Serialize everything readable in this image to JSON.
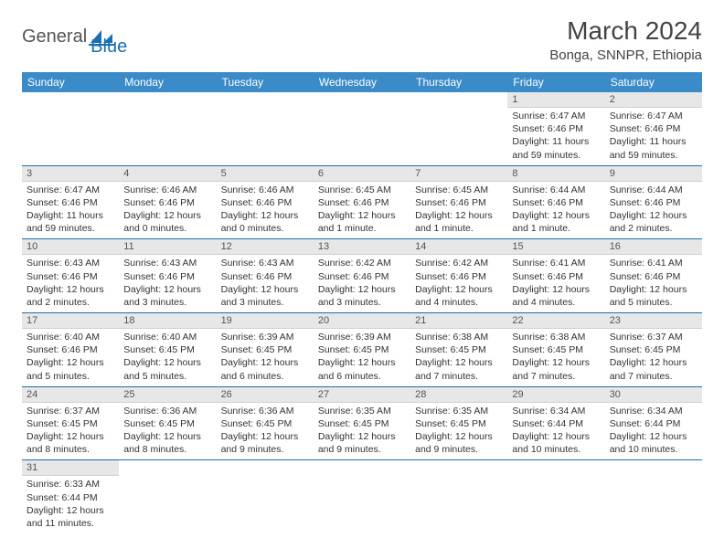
{
  "logo": {
    "text1": "General",
    "text2": "Blue"
  },
  "title": "March 2024",
  "location": "Bonga, SNNPR, Ethiopia",
  "colors": {
    "header_bg": "#3b8bc9",
    "header_text": "#ffffff",
    "daynum_bg": "#e7e7e7",
    "week_border": "#1a6fb0",
    "logo_gray": "#555555",
    "logo_blue": "#1a6fb0"
  },
  "weekdays": [
    "Sunday",
    "Monday",
    "Tuesday",
    "Wednesday",
    "Thursday",
    "Friday",
    "Saturday"
  ],
  "weeks": [
    [
      null,
      null,
      null,
      null,
      null,
      {
        "n": "1",
        "sunrise": "Sunrise: 6:47 AM",
        "sunset": "Sunset: 6:46 PM",
        "daylight": "Daylight: 11 hours and 59 minutes."
      },
      {
        "n": "2",
        "sunrise": "Sunrise: 6:47 AM",
        "sunset": "Sunset: 6:46 PM",
        "daylight": "Daylight: 11 hours and 59 minutes."
      }
    ],
    [
      {
        "n": "3",
        "sunrise": "Sunrise: 6:47 AM",
        "sunset": "Sunset: 6:46 PM",
        "daylight": "Daylight: 11 hours and 59 minutes."
      },
      {
        "n": "4",
        "sunrise": "Sunrise: 6:46 AM",
        "sunset": "Sunset: 6:46 PM",
        "daylight": "Daylight: 12 hours and 0 minutes."
      },
      {
        "n": "5",
        "sunrise": "Sunrise: 6:46 AM",
        "sunset": "Sunset: 6:46 PM",
        "daylight": "Daylight: 12 hours and 0 minutes."
      },
      {
        "n": "6",
        "sunrise": "Sunrise: 6:45 AM",
        "sunset": "Sunset: 6:46 PM",
        "daylight": "Daylight: 12 hours and 1 minute."
      },
      {
        "n": "7",
        "sunrise": "Sunrise: 6:45 AM",
        "sunset": "Sunset: 6:46 PM",
        "daylight": "Daylight: 12 hours and 1 minute."
      },
      {
        "n": "8",
        "sunrise": "Sunrise: 6:44 AM",
        "sunset": "Sunset: 6:46 PM",
        "daylight": "Daylight: 12 hours and 1 minute."
      },
      {
        "n": "9",
        "sunrise": "Sunrise: 6:44 AM",
        "sunset": "Sunset: 6:46 PM",
        "daylight": "Daylight: 12 hours and 2 minutes."
      }
    ],
    [
      {
        "n": "10",
        "sunrise": "Sunrise: 6:43 AM",
        "sunset": "Sunset: 6:46 PM",
        "daylight": "Daylight: 12 hours and 2 minutes."
      },
      {
        "n": "11",
        "sunrise": "Sunrise: 6:43 AM",
        "sunset": "Sunset: 6:46 PM",
        "daylight": "Daylight: 12 hours and 3 minutes."
      },
      {
        "n": "12",
        "sunrise": "Sunrise: 6:43 AM",
        "sunset": "Sunset: 6:46 PM",
        "daylight": "Daylight: 12 hours and 3 minutes."
      },
      {
        "n": "13",
        "sunrise": "Sunrise: 6:42 AM",
        "sunset": "Sunset: 6:46 PM",
        "daylight": "Daylight: 12 hours and 3 minutes."
      },
      {
        "n": "14",
        "sunrise": "Sunrise: 6:42 AM",
        "sunset": "Sunset: 6:46 PM",
        "daylight": "Daylight: 12 hours and 4 minutes."
      },
      {
        "n": "15",
        "sunrise": "Sunrise: 6:41 AM",
        "sunset": "Sunset: 6:46 PM",
        "daylight": "Daylight: 12 hours and 4 minutes."
      },
      {
        "n": "16",
        "sunrise": "Sunrise: 6:41 AM",
        "sunset": "Sunset: 6:46 PM",
        "daylight": "Daylight: 12 hours and 5 minutes."
      }
    ],
    [
      {
        "n": "17",
        "sunrise": "Sunrise: 6:40 AM",
        "sunset": "Sunset: 6:46 PM",
        "daylight": "Daylight: 12 hours and 5 minutes."
      },
      {
        "n": "18",
        "sunrise": "Sunrise: 6:40 AM",
        "sunset": "Sunset: 6:45 PM",
        "daylight": "Daylight: 12 hours and 5 minutes."
      },
      {
        "n": "19",
        "sunrise": "Sunrise: 6:39 AM",
        "sunset": "Sunset: 6:45 PM",
        "daylight": "Daylight: 12 hours and 6 minutes."
      },
      {
        "n": "20",
        "sunrise": "Sunrise: 6:39 AM",
        "sunset": "Sunset: 6:45 PM",
        "daylight": "Daylight: 12 hours and 6 minutes."
      },
      {
        "n": "21",
        "sunrise": "Sunrise: 6:38 AM",
        "sunset": "Sunset: 6:45 PM",
        "daylight": "Daylight: 12 hours and 7 minutes."
      },
      {
        "n": "22",
        "sunrise": "Sunrise: 6:38 AM",
        "sunset": "Sunset: 6:45 PM",
        "daylight": "Daylight: 12 hours and 7 minutes."
      },
      {
        "n": "23",
        "sunrise": "Sunrise: 6:37 AM",
        "sunset": "Sunset: 6:45 PM",
        "daylight": "Daylight: 12 hours and 7 minutes."
      }
    ],
    [
      {
        "n": "24",
        "sunrise": "Sunrise: 6:37 AM",
        "sunset": "Sunset: 6:45 PM",
        "daylight": "Daylight: 12 hours and 8 minutes."
      },
      {
        "n": "25",
        "sunrise": "Sunrise: 6:36 AM",
        "sunset": "Sunset: 6:45 PM",
        "daylight": "Daylight: 12 hours and 8 minutes."
      },
      {
        "n": "26",
        "sunrise": "Sunrise: 6:36 AM",
        "sunset": "Sunset: 6:45 PM",
        "daylight": "Daylight: 12 hours and 9 minutes."
      },
      {
        "n": "27",
        "sunrise": "Sunrise: 6:35 AM",
        "sunset": "Sunset: 6:45 PM",
        "daylight": "Daylight: 12 hours and 9 minutes."
      },
      {
        "n": "28",
        "sunrise": "Sunrise: 6:35 AM",
        "sunset": "Sunset: 6:45 PM",
        "daylight": "Daylight: 12 hours and 9 minutes."
      },
      {
        "n": "29",
        "sunrise": "Sunrise: 6:34 AM",
        "sunset": "Sunset: 6:44 PM",
        "daylight": "Daylight: 12 hours and 10 minutes."
      },
      {
        "n": "30",
        "sunrise": "Sunrise: 6:34 AM",
        "sunset": "Sunset: 6:44 PM",
        "daylight": "Daylight: 12 hours and 10 minutes."
      }
    ],
    [
      {
        "n": "31",
        "sunrise": "Sunrise: 6:33 AM",
        "sunset": "Sunset: 6:44 PM",
        "daylight": "Daylight: 12 hours and 11 minutes."
      },
      null,
      null,
      null,
      null,
      null,
      null
    ]
  ]
}
